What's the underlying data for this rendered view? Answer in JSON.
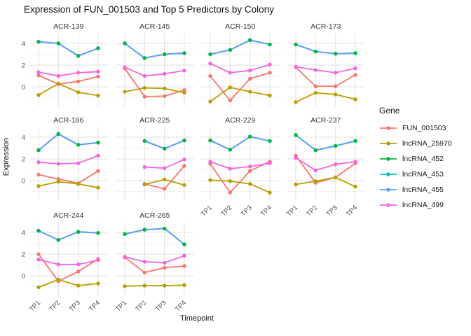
{
  "title": "Expression of FUN_001503 and Top 5 Predictors by Colony",
  "axes": {
    "y_label": "Expression",
    "x_label": "Timepoint",
    "y_ticks": [
      "4",
      "2",
      "0"
    ],
    "y_tick_values": [
      4,
      2,
      0
    ],
    "x_ticks": [
      "TP1",
      "TP2",
      "TP3",
      "TP4"
    ]
  },
  "legend": {
    "title": "Gene",
    "position": "right",
    "entries": [
      {
        "label": "FUN_001503",
        "color": "#F8766D"
      },
      {
        "label": "lncRNA_25970",
        "color": "#B79F00"
      },
      {
        "label": "lncRNA_452",
        "color": "#00BA38"
      },
      {
        "label": "lncRNA_453",
        "color": "#00BFC4"
      },
      {
        "label": "lncRNA_455",
        "color": "#619CFF"
      },
      {
        "label": "lncRNA_499",
        "color": "#F564E3"
      }
    ]
  },
  "chart_data": {
    "type": "line",
    "title": "Expression of FUN_001503 and Top 5 Predictors by Colony",
    "xlabel": "Timepoint",
    "ylabel": "Expression",
    "x": [
      "TP1",
      "TP2",
      "TP3",
      "TP4"
    ],
    "ylim": [
      -1.8,
      4.9
    ],
    "grid": {
      "major_y": [
        0,
        2,
        4
      ],
      "minor_y": [
        -1,
        1,
        3
      ],
      "vertical_at_each_x": true
    },
    "line_draw_order": [
      "FUN_001503",
      "lncRNA_25970",
      "lncRNA_452",
      "lncRNA_453",
      "lncRNA_455",
      "lncRNA_499"
    ],
    "point_draw_order": [
      "FUN_001503",
      "lncRNA_25970",
      "lncRNA_453",
      "lncRNA_455",
      "lncRNA_452",
      "lncRNA_499"
    ],
    "facets": [
      {
        "name": "ACR-139",
        "series": [
          {
            "gene": "FUN_001503",
            "values": [
              1.05,
              0.25,
              0.5,
              0.95
            ]
          },
          {
            "gene": "lncRNA_25970",
            "values": [
              -0.75,
              0.3,
              -0.5,
              -0.8
            ]
          },
          {
            "gene": "lncRNA_452",
            "values": [
              4.15,
              4.0,
              2.85,
              3.55
            ]
          },
          {
            "gene": "lncRNA_453",
            "values": [
              4.15,
              4.0,
              2.85,
              3.55
            ]
          },
          {
            "gene": "lncRNA_455",
            "values": [
              4.15,
              4.0,
              2.85,
              3.55
            ]
          },
          {
            "gene": "lncRNA_499",
            "values": [
              1.35,
              1.0,
              1.3,
              1.4
            ]
          }
        ]
      },
      {
        "name": "ACR-145",
        "series": [
          {
            "gene": "FUN_001503",
            "values": [
              1.7,
              -0.9,
              -0.85,
              -0.3
            ]
          },
          {
            "gene": "lncRNA_25970",
            "values": [
              -0.45,
              -0.1,
              -0.15,
              -0.55
            ]
          },
          {
            "gene": "lncRNA_452",
            "values": [
              4.0,
              2.65,
              3.0,
              3.1
            ]
          },
          {
            "gene": "lncRNA_453",
            "values": [
              4.0,
              2.65,
              3.0,
              3.1
            ]
          },
          {
            "gene": "lncRNA_455",
            "values": [
              4.0,
              2.65,
              3.0,
              3.1
            ]
          },
          {
            "gene": "lncRNA_499",
            "values": [
              1.8,
              1.0,
              1.2,
              1.5
            ]
          }
        ]
      },
      {
        "name": "ACR-150",
        "series": [
          {
            "gene": "FUN_001503",
            "values": [
              1.0,
              -1.25,
              0.75,
              1.3
            ]
          },
          {
            "gene": "lncRNA_25970",
            "values": [
              -1.35,
              -0.05,
              -0.45,
              -0.8
            ]
          },
          {
            "gene": "lncRNA_452",
            "values": [
              3.0,
              3.4,
              4.3,
              3.9
            ]
          },
          {
            "gene": "lncRNA_453",
            "values": [
              3.0,
              3.4,
              4.3,
              3.9
            ]
          },
          {
            "gene": "lncRNA_455",
            "values": [
              3.0,
              3.4,
              4.3,
              3.9
            ]
          },
          {
            "gene": "lncRNA_499",
            "values": [
              2.15,
              1.3,
              1.5,
              2.05
            ]
          }
        ]
      },
      {
        "name": "ACR-173",
        "series": [
          {
            "gene": "FUN_001503",
            "values": [
              1.8,
              0.05,
              0.05,
              1.1
            ]
          },
          {
            "gene": "lncRNA_25970",
            "values": [
              -1.4,
              -0.55,
              -0.7,
              -1.15
            ]
          },
          {
            "gene": "lncRNA_452",
            "values": [
              3.9,
              3.25,
              3.05,
              3.1
            ]
          },
          {
            "gene": "lncRNA_453",
            "values": [
              3.9,
              3.25,
              3.05,
              3.1
            ]
          },
          {
            "gene": "lncRNA_455",
            "values": [
              3.9,
              3.25,
              3.05,
              3.1
            ]
          },
          {
            "gene": "lncRNA_499",
            "values": [
              1.85,
              1.55,
              1.3,
              1.7
            ]
          }
        ]
      },
      {
        "name": "ACR-186",
        "series": [
          {
            "gene": "FUN_001503",
            "values": [
              0.55,
              0.15,
              -0.25,
              0.9
            ]
          },
          {
            "gene": "lncRNA_25970",
            "values": [
              -0.5,
              -0.1,
              -0.3,
              -0.65
            ]
          },
          {
            "gene": "lncRNA_452",
            "values": [
              2.8,
              4.3,
              3.3,
              3.5
            ]
          },
          {
            "gene": "lncRNA_453",
            "values": [
              2.8,
              4.3,
              3.3,
              3.5
            ]
          },
          {
            "gene": "lncRNA_455",
            "values": [
              2.8,
              4.3,
              3.3,
              3.5
            ]
          },
          {
            "gene": "lncRNA_499",
            "values": [
              1.7,
              1.55,
              1.6,
              2.3
            ]
          }
        ]
      },
      {
        "name": "ACR-225",
        "series": [
          {
            "gene": "FUN_001503",
            "values": [
              null,
              -0.3,
              -0.75,
              1.35
            ]
          },
          {
            "gene": "lncRNA_25970",
            "values": [
              null,
              -0.35,
              0.1,
              -0.4
            ]
          },
          {
            "gene": "lncRNA_452",
            "values": [
              null,
              3.65,
              2.95,
              3.7
            ]
          },
          {
            "gene": "lncRNA_453",
            "values": [
              null,
              3.65,
              2.95,
              3.7
            ]
          },
          {
            "gene": "lncRNA_455",
            "values": [
              null,
              3.65,
              2.95,
              3.7
            ]
          },
          {
            "gene": "lncRNA_499",
            "values": [
              null,
              1.25,
              1.15,
              1.95
            ]
          }
        ]
      },
      {
        "name": "ACR-229",
        "series": [
          {
            "gene": "FUN_001503",
            "values": [
              1.55,
              -1.1,
              0.9,
              1.75
            ]
          },
          {
            "gene": "lncRNA_25970",
            "values": [
              0.05,
              -0.05,
              -0.3,
              -1.1
            ]
          },
          {
            "gene": "lncRNA_452",
            "values": [
              3.7,
              2.85,
              4.05,
              3.65
            ]
          },
          {
            "gene": "lncRNA_453",
            "values": [
              3.7,
              2.85,
              4.05,
              3.65
            ]
          },
          {
            "gene": "lncRNA_455",
            "values": [
              3.7,
              2.85,
              4.05,
              3.65
            ]
          },
          {
            "gene": "lncRNA_499",
            "values": [
              1.75,
              1.1,
              1.3,
              1.6
            ]
          }
        ]
      },
      {
        "name": "ACR-237",
        "series": [
          {
            "gene": "FUN_001503",
            "values": [
              2.3,
              -0.2,
              0.3,
              1.6
            ]
          },
          {
            "gene": "lncRNA_25970",
            "values": [
              -0.35,
              -0.05,
              0.3,
              -0.55
            ]
          },
          {
            "gene": "lncRNA_452",
            "values": [
              4.2,
              2.8,
              3.2,
              3.65
            ]
          },
          {
            "gene": "lncRNA_453",
            "values": [
              4.2,
              2.8,
              3.2,
              3.65
            ]
          },
          {
            "gene": "lncRNA_455",
            "values": [
              4.2,
              2.8,
              3.2,
              3.65
            ]
          },
          {
            "gene": "lncRNA_499",
            "values": [
              2.1,
              0.95,
              1.5,
              1.75
            ]
          }
        ]
      },
      {
        "name": "ACR-244",
        "series": [
          {
            "gene": "FUN_001503",
            "values": [
              2.0,
              -0.5,
              0.4,
              1.55
            ]
          },
          {
            "gene": "lncRNA_25970",
            "values": [
              -1.05,
              -0.35,
              -0.9,
              -0.7
            ]
          },
          {
            "gene": "lncRNA_452",
            "values": [
              4.15,
              3.3,
              4.05,
              3.95
            ]
          },
          {
            "gene": "lncRNA_453",
            "values": [
              4.15,
              3.3,
              4.05,
              3.95
            ]
          },
          {
            "gene": "lncRNA_455",
            "values": [
              4.15,
              3.3,
              4.05,
              3.95
            ]
          },
          {
            "gene": "lncRNA_499",
            "values": [
              1.5,
              1.05,
              1.05,
              1.45
            ]
          }
        ]
      },
      {
        "name": "ACR-265",
        "series": [
          {
            "gene": "FUN_001503",
            "values": [
              1.7,
              0.3,
              0.75,
              0.9
            ]
          },
          {
            "gene": "lncRNA_25970",
            "values": [
              -0.95,
              -0.9,
              -0.9,
              -0.85
            ]
          },
          {
            "gene": "lncRNA_452",
            "values": [
              3.85,
              4.25,
              4.35,
              2.9
            ]
          },
          {
            "gene": "lncRNA_453",
            "values": [
              3.85,
              4.25,
              4.35,
              2.9
            ]
          },
          {
            "gene": "lncRNA_455",
            "values": [
              3.85,
              4.25,
              4.35,
              2.9
            ]
          },
          {
            "gene": "lncRNA_499",
            "values": [
              1.75,
              1.3,
              1.2,
              1.85
            ]
          }
        ]
      }
    ]
  },
  "style_colors": {
    "grid_major": "#E3E3E3",
    "grid_minor": "#F0F0F0",
    "axis_text": "#4D4D4D",
    "strip_text": "#333333",
    "title_text": "#111111"
  }
}
